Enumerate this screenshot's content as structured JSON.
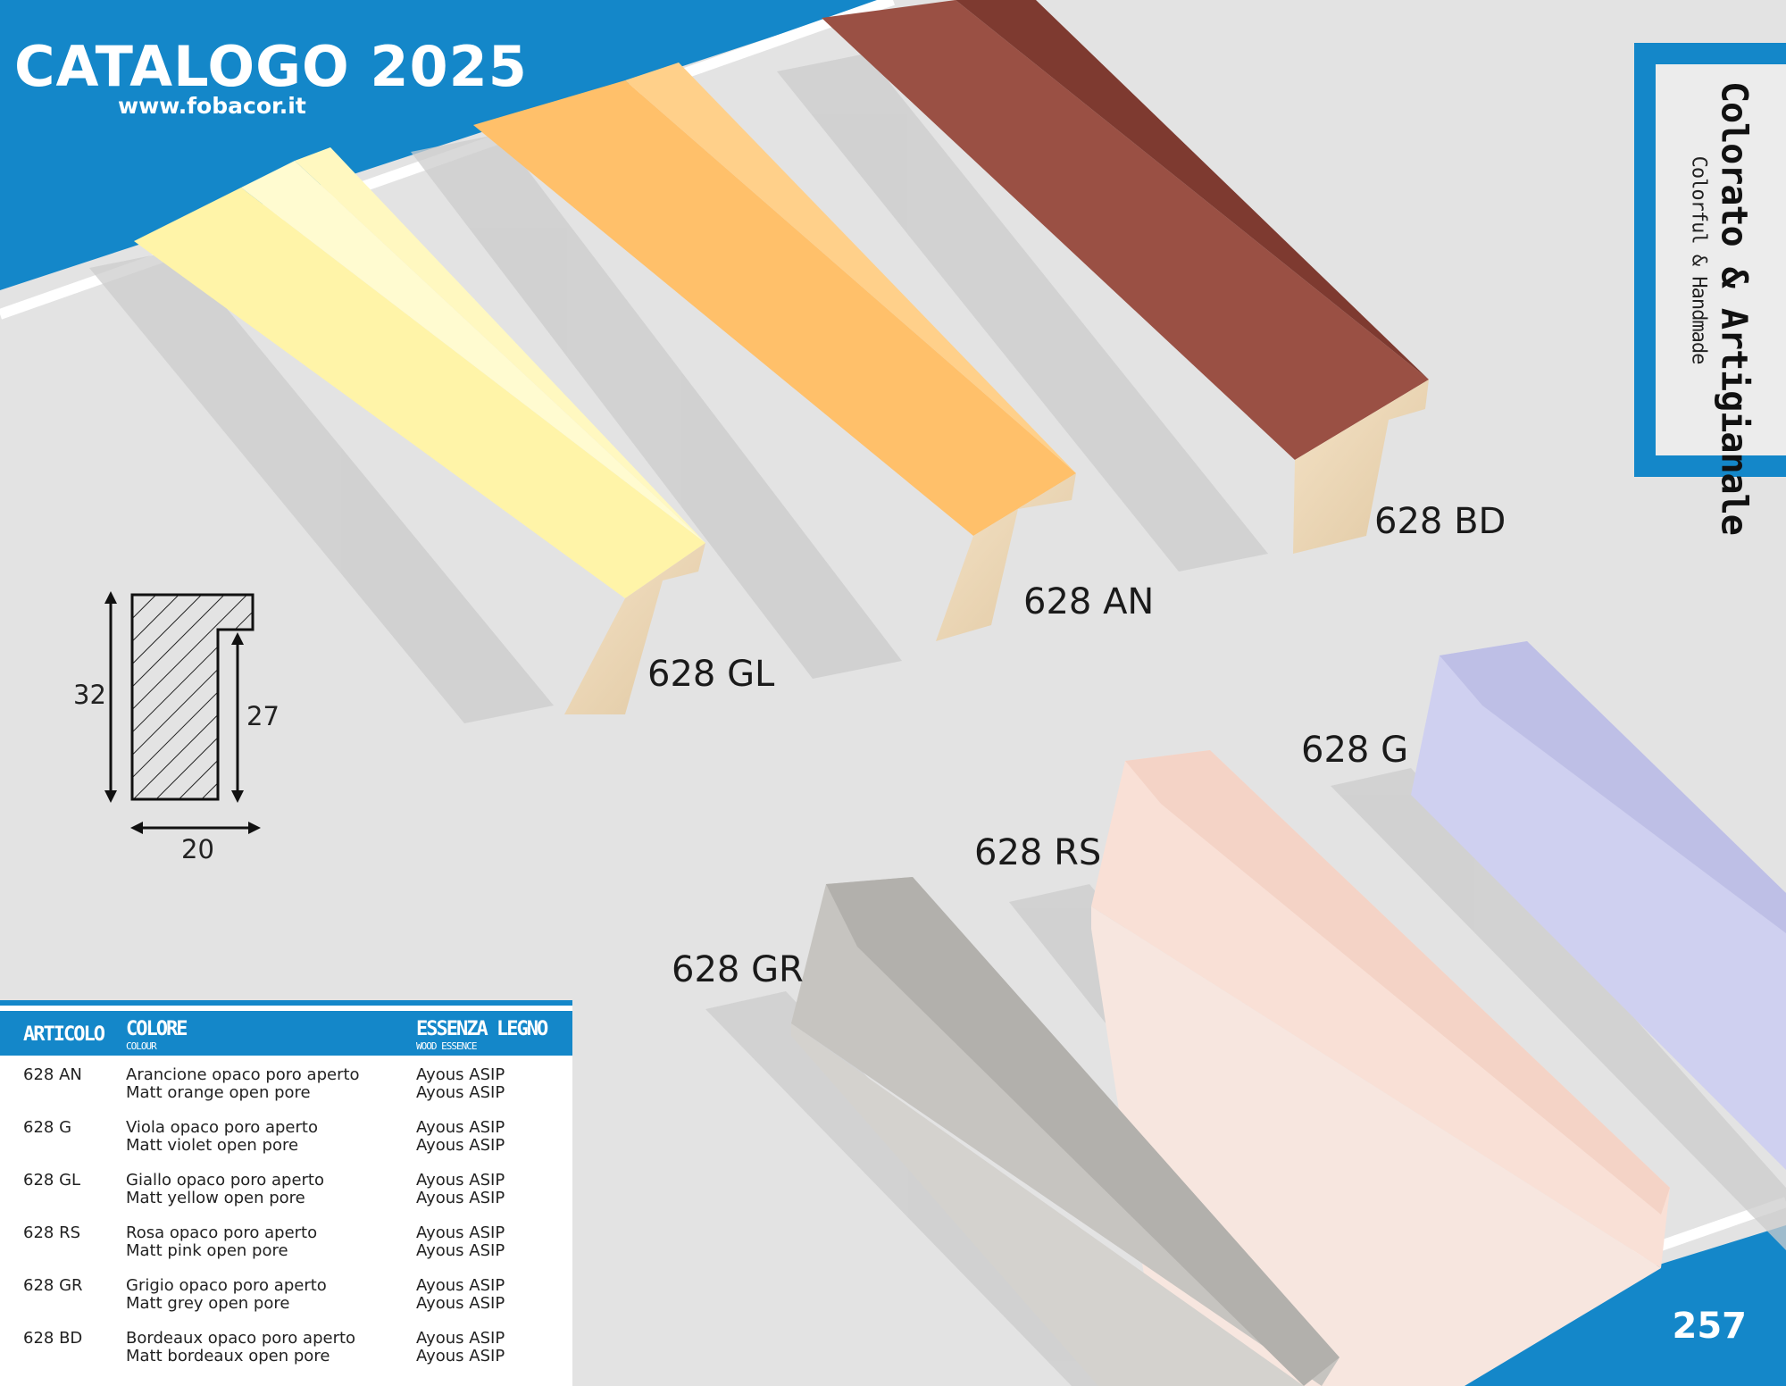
{
  "header": {
    "title": "CATALOGO 2025",
    "website": "www.fobacor.it"
  },
  "section": {
    "title": "Colorato & Artigianale",
    "subtitle": "Colorful & Handmade"
  },
  "colors": {
    "brand_blue": "#1487c9",
    "background": "#e3e3e3"
  },
  "products": [
    {
      "code": "628 GL",
      "color": "#fff4a8"
    },
    {
      "code": "628 AN",
      "color": "#ffc06a"
    },
    {
      "code": "628 BD",
      "color": "#8e4a3e"
    },
    {
      "code": "628 G",
      "color": "#cfd0f0"
    },
    {
      "code": "628 RS",
      "color": "#f9e0d6"
    },
    {
      "code": "628 GR",
      "color": "#b8b6b2"
    }
  ],
  "profile": {
    "height": "32",
    "inner_height": "27",
    "width": "20"
  },
  "table": {
    "headers": {
      "article": "ARTICOLO",
      "color": "COLORE",
      "color_sub": "COLOUR",
      "wood": "ESSENZA LEGNO",
      "wood_sub": "WOOD ESSENCE"
    },
    "rows": [
      {
        "code": "628 AN",
        "color_it": "Arancione opaco poro aperto",
        "color_en": "Matt orange open pore",
        "wood_1": "Ayous ASIP",
        "wood_2": "Ayous ASIP"
      },
      {
        "code": "628 G",
        "color_it": "Viola opaco poro aperto",
        "color_en": "Matt violet open pore",
        "wood_1": "Ayous ASIP",
        "wood_2": "Ayous ASIP"
      },
      {
        "code": "628 GL",
        "color_it": "Giallo opaco poro aperto",
        "color_en": "Matt yellow open pore",
        "wood_1": "Ayous ASIP",
        "wood_2": "Ayous ASIP"
      },
      {
        "code": "628 RS",
        "color_it": "Rosa opaco poro aperto",
        "color_en": "Matt pink open pore",
        "wood_1": "Ayous ASIP",
        "wood_2": "Ayous ASIP"
      },
      {
        "code": "628 GR",
        "color_it": "Grigio opaco poro aperto",
        "color_en": "Matt grey open pore",
        "wood_1": "Ayous ASIP",
        "wood_2": "Ayous ASIP"
      },
      {
        "code": "628 BD",
        "color_it": "Bordeaux opaco poro aperto",
        "color_en": "Matt bordeaux open pore",
        "wood_1": "Ayous ASIP",
        "wood_2": "Ayous ASIP"
      }
    ]
  },
  "page_number": "257"
}
